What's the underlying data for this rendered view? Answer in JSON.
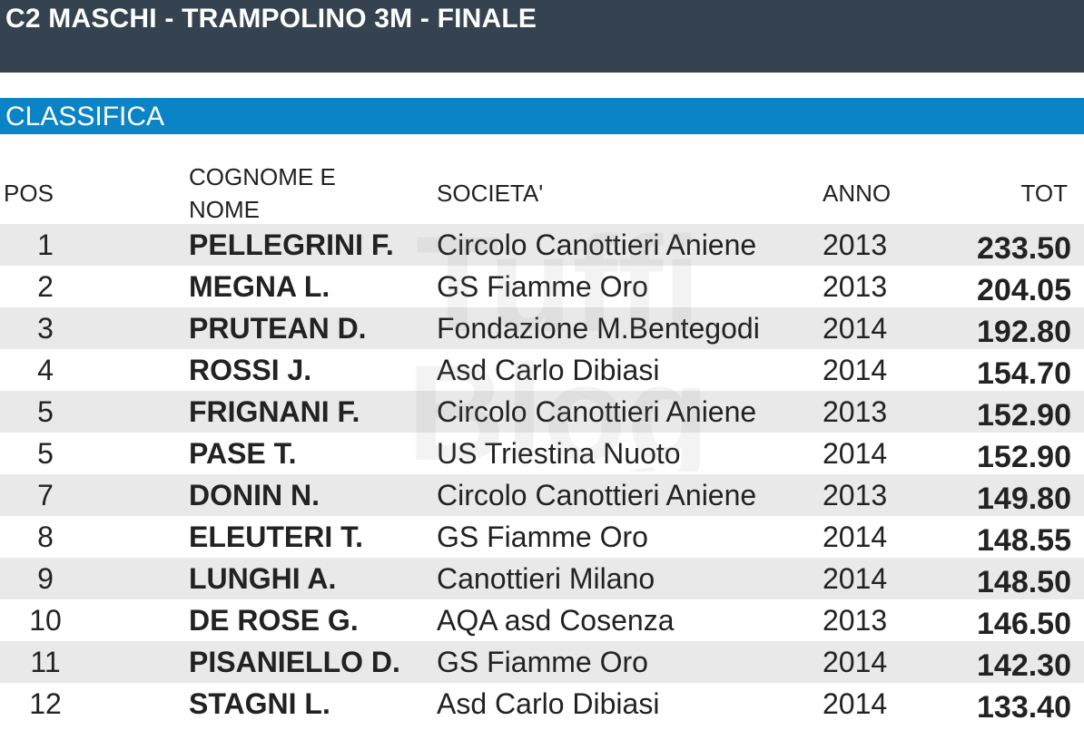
{
  "header": {
    "title": "C2 MASCHI - TRAMPOLINO 3M - FINALE"
  },
  "section": {
    "title": "CLASSIFICA"
  },
  "columns": {
    "pos": "POS",
    "name": "COGNOME E NOME",
    "societa": "SOCIETA'",
    "anno": "ANNO",
    "tot": "TOT"
  },
  "rows": [
    {
      "pos": "1",
      "name": "PELLEGRINI F.",
      "societa": "Circolo Canottieri Aniene",
      "anno": "2013",
      "tot": "233.50"
    },
    {
      "pos": "2",
      "name": "MEGNA L.",
      "societa": "GS Fiamme Oro",
      "anno": "2013",
      "tot": "204.05"
    },
    {
      "pos": "3",
      "name": "PRUTEAN D.",
      "societa": "Fondazione M.Bentegodi",
      "anno": "2014",
      "tot": "192.80"
    },
    {
      "pos": "4",
      "name": "ROSSI J.",
      "societa": "Asd Carlo Dibiasi",
      "anno": "2014",
      "tot": "154.70"
    },
    {
      "pos": "5",
      "name": "FRIGNANI F.",
      "societa": "Circolo Canottieri Aniene",
      "anno": "2013",
      "tot": "152.90"
    },
    {
      "pos": "5",
      "name": "PASE T.",
      "societa": "US Triestina Nuoto",
      "anno": "2014",
      "tot": "152.90"
    },
    {
      "pos": "7",
      "name": "DONIN N.",
      "societa": "Circolo Canottieri Aniene",
      "anno": "2013",
      "tot": "149.80"
    },
    {
      "pos": "8",
      "name": "ELEUTERI T.",
      "societa": "GS Fiamme Oro",
      "anno": "2014",
      "tot": "148.55"
    },
    {
      "pos": "9",
      "name": "LUNGHI A.",
      "societa": "Canottieri Milano",
      "anno": "2014",
      "tot": "148.50"
    },
    {
      "pos": "10",
      "name": "DE ROSE G.",
      "societa": "AQA asd Cosenza",
      "anno": "2013",
      "tot": "146.50"
    },
    {
      "pos": "11",
      "name": "PISANIELLO D.",
      "societa": "GS Fiamme Oro",
      "anno": "2014",
      "tot": "142.30"
    },
    {
      "pos": "12",
      "name": "STAGNI L.",
      "societa": "Asd Carlo Dibiasi",
      "anno": "2014",
      "tot": "133.40"
    }
  ],
  "watermark": {
    "line1": "Tuffi",
    "line2": "Blog"
  },
  "colors": {
    "header_bg": "#34434f",
    "section_bg": "#0a84c6",
    "row_shade": "#e2e2e2"
  }
}
